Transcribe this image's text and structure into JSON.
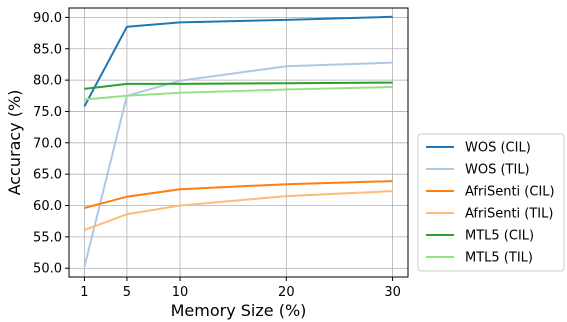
{
  "chart_data": {
    "type": "line",
    "xlabel": "Memory Size (%)",
    "ylabel": "Accuracy (%)",
    "x": [
      1,
      5,
      10,
      20,
      30
    ],
    "xticks": [
      "1",
      "5",
      "10",
      "20",
      "30"
    ],
    "xlim": [
      -0.45,
      31.45
    ],
    "yticks": [
      "50.0",
      "55.0",
      "60.0",
      "65.0",
      "70.0",
      "75.0",
      "80.0",
      "85.0",
      "90.0"
    ],
    "ylim": [
      48.6,
      91.5
    ],
    "grid": true,
    "legend_position": "outside right",
    "series": [
      {
        "name": "WOS (CIL)",
        "color": "#1f77b4",
        "values": [
          75.8,
          88.5,
          89.2,
          89.6,
          90.1
        ]
      },
      {
        "name": "WOS (TIL)",
        "color": "#aec7e8",
        "values": [
          50.2,
          77.5,
          79.9,
          82.2,
          82.8
        ]
      },
      {
        "name": "AfriSenti (CIL)",
        "color": "#ff7f0e",
        "values": [
          59.6,
          61.4,
          62.6,
          63.4,
          63.9
        ]
      },
      {
        "name": "AfriSenti (TIL)",
        "color": "#ffbb78",
        "values": [
          56.1,
          58.6,
          60.0,
          61.5,
          62.3
        ]
      },
      {
        "name": "MTL5 (CIL)",
        "color": "#2ca02c",
        "values": [
          78.6,
          79.4,
          79.4,
          79.5,
          79.6
        ]
      },
      {
        "name": "MTL5 (TIL)",
        "color": "#98df8a",
        "values": [
          76.9,
          77.5,
          78.0,
          78.5,
          78.9
        ]
      }
    ]
  }
}
